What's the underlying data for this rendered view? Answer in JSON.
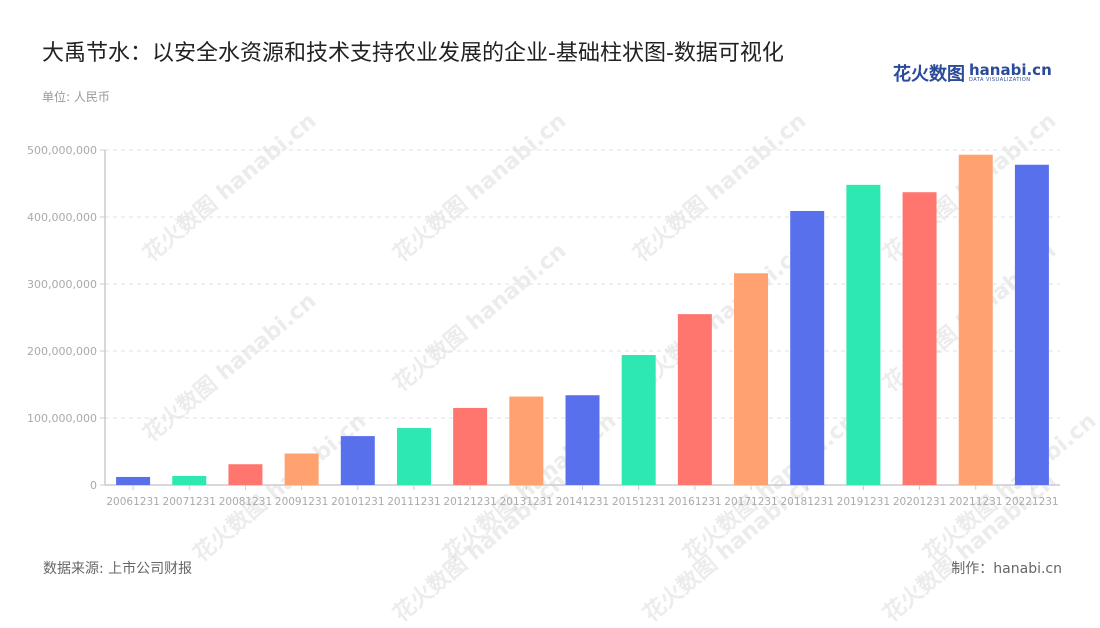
{
  "header": {
    "title": "大禹节水：以安全水资源和技术支持农业发展的企业-基础柱状图-数据可视化",
    "unit": "单位: 人民币"
  },
  "logo": {
    "cn": "花火数图",
    "en": "hanabi.cn",
    "sub": "DATA VISUALIZATION"
  },
  "footer": {
    "source": "数据来源: 上市公司财报",
    "credit": "制作：hanabi.cn"
  },
  "watermark": "花火数图 hanabi.cn",
  "colors": [
    "#5970ed",
    "#2ee8b2",
    "#ff766f",
    "#ffa26f"
  ],
  "chart_data": {
    "type": "bar",
    "title": "大禹节水：以安全水资源和技术支持农业发展的企业-基础柱状图-数据可视化",
    "xlabel": "",
    "ylabel": "单位: 人民币",
    "ylim": [
      0,
      500000000
    ],
    "yticks": [
      0,
      100000000,
      200000000,
      300000000,
      400000000,
      500000000
    ],
    "ytick_labels": [
      "0",
      "100,000,000",
      "200,000,000",
      "300,000,000",
      "400,000,000",
      "500,000,000"
    ],
    "grid": true,
    "legend": "none",
    "categories": [
      "20061231",
      "20071231",
      "20081231",
      "20091231",
      "20101231",
      "20111231",
      "20121231",
      "20131231",
      "20141231",
      "20151231",
      "20161231",
      "20171231",
      "20181231",
      "20191231",
      "20201231",
      "20211231",
      "20221231"
    ],
    "values": [
      12000000,
      13500000,
      31000000,
      47000000,
      73000000,
      85000000,
      115000000,
      132000000,
      134000000,
      194000000,
      255000000,
      316000000,
      409000000,
      448000000,
      437000000,
      493000000,
      478000000
    ]
  }
}
